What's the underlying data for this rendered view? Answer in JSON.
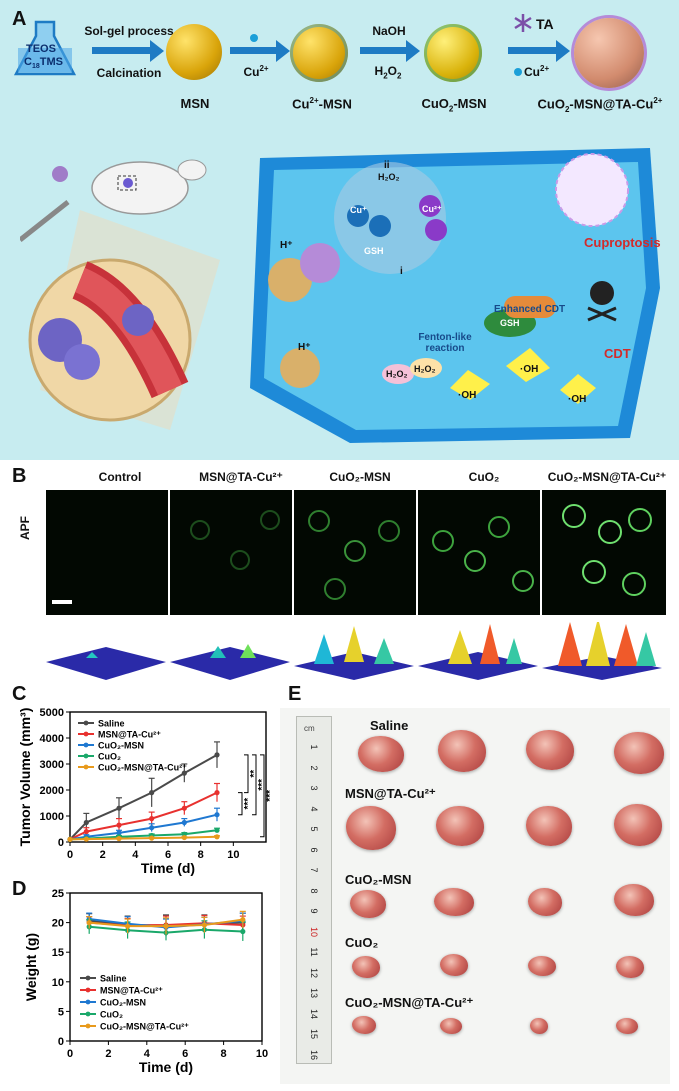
{
  "panel_labels": {
    "a": "A",
    "b": "B",
    "c": "C",
    "d": "D",
    "e": "E"
  },
  "synthesis": {
    "flask_text_line1": "TEOS",
    "flask_text_line2": "C",
    "flask_text_sub": "18",
    "flask_text_suffix": "TMS",
    "step1_top": "Sol-gel process",
    "step1_bottom": "Calcination",
    "step2_label": "Cu",
    "step2_sup": "2+",
    "step3_top": "NaOH",
    "step3_bottom_main": "H",
    "step3_bottom_sub": "2",
    "step3_bottom_tail": "O",
    "step3_bottom_sub2": "2",
    "step4_top": "TA",
    "step4_bottom": "Cu",
    "step4_bottom_sup": "2+",
    "product1": "MSN",
    "product2_main": "Cu",
    "product2_sup": "2+",
    "product2_tail": "-MSN",
    "product3_main": "CuO",
    "product3_sub": "2",
    "product3_tail": "-MSN",
    "product4_main": "CuO",
    "product4_sub": "2",
    "product4_mid": "-MSN@TA-Cu",
    "product4_sup": "2+"
  },
  "mechanism": {
    "h_plus_1": "H⁺",
    "h_plus_2": "H⁺",
    "h2o2_top": "H₂O₂",
    "label_ii": "ii",
    "label_i": "i",
    "gsh_1": "GSH",
    "gsh_2": "GSH",
    "enhanced_cdt": "Enhanced CDT",
    "fenton": "Fenton-like reaction",
    "h2o2_a": "H₂O₂",
    "h2o2_b": "H₂O₂",
    "oh_1": "·OH",
    "oh_2": "·OH",
    "oh_3": "·OH",
    "cdt": "CDT",
    "cuproptosis": "Cuproptosis",
    "cu_ion": "Cu⁺",
    "cu2_ion": "Cu²⁺"
  },
  "panel_b": {
    "row_label": "APF",
    "columns": [
      "Control",
      "MSN@TA-Cu²⁺",
      "CuO₂-MSN",
      "CuO₂",
      "CuO₂-MSN@TA-Cu²⁺"
    ]
  },
  "chart_data": [
    {
      "type": "line",
      "panel": "C",
      "xlabel": "Time (d)",
      "ylabel": "Tumor Volume (mm³)",
      "xlim": [
        0,
        12
      ],
      "ylim": [
        0,
        5000
      ],
      "xticks": [
        0,
        2,
        4,
        6,
        8,
        10
      ],
      "yticks": [
        0,
        1000,
        2000,
        3000,
        4000,
        5000
      ],
      "x": [
        0,
        1,
        3,
        5,
        7,
        9
      ],
      "series": [
        {
          "name": "Saline",
          "color": "#4a4a4a",
          "values": [
            100,
            750,
            1300,
            1900,
            2650,
            3350
          ],
          "err": [
            0,
            350,
            400,
            550,
            350,
            500
          ]
        },
        {
          "name": "MSN@TA-Cu²⁺",
          "color": "#e8312f",
          "values": [
            100,
            400,
            650,
            900,
            1300,
            1900
          ],
          "err": [
            0,
            150,
            250,
            250,
            250,
            350
          ]
        },
        {
          "name": "CuO₂-MSN",
          "color": "#1f78d1",
          "values": [
            100,
            200,
            350,
            550,
            750,
            1050
          ],
          "err": [
            0,
            80,
            100,
            150,
            150,
            250
          ]
        },
        {
          "name": "CuO₂",
          "color": "#1aa86a",
          "values": [
            100,
            130,
            200,
            250,
            300,
            450
          ],
          "err": [
            0,
            40,
            50,
            60,
            60,
            80
          ]
        },
        {
          "name": "CuO₂-MSN@TA-Cu²⁺",
          "color": "#e89a1c",
          "values": [
            100,
            110,
            130,
            150,
            170,
            200
          ],
          "err": [
            0,
            20,
            30,
            30,
            30,
            40
          ]
        }
      ],
      "significance": [
        "**",
        "***",
        "***",
        "***"
      ],
      "legend_position": "top-left"
    },
    {
      "type": "line",
      "panel": "D",
      "xlabel": "Time (d)",
      "ylabel": "Weight (g)",
      "xlim": [
        0,
        10
      ],
      "ylim": [
        0,
        25
      ],
      "xticks": [
        0,
        2,
        4,
        6,
        8,
        10
      ],
      "yticks": [
        0,
        5,
        10,
        15,
        20,
        25
      ],
      "x": [
        1,
        3,
        5,
        7,
        9
      ],
      "series": [
        {
          "name": "Saline",
          "color": "#4a4a4a",
          "values": [
            20.3,
            19.6,
            19.5,
            19.8,
            20.0
          ],
          "err": [
            1.2,
            1.5,
            1.8,
            1.5,
            1.6
          ]
        },
        {
          "name": "MSN@TA-Cu²⁺",
          "color": "#e8312f",
          "values": [
            20.0,
            19.5,
            19.6,
            19.9,
            19.6
          ],
          "err": [
            1.0,
            1.2,
            1.5,
            1.3,
            1.5
          ]
        },
        {
          "name": "CuO₂-MSN",
          "color": "#1f78d1",
          "values": [
            20.6,
            19.8,
            19.2,
            19.7,
            20.3
          ],
          "err": [
            1.0,
            1.2,
            1.4,
            1.2,
            1.3
          ]
        },
        {
          "name": "CuO₂",
          "color": "#1aa86a",
          "values": [
            19.3,
            18.7,
            18.3,
            18.8,
            18.5
          ],
          "err": [
            1.2,
            1.4,
            1.3,
            1.5,
            1.6
          ]
        },
        {
          "name": "CuO₂-MSN@TA-Cu²⁺",
          "color": "#e89a1c",
          "values": [
            20.0,
            19.4,
            19.4,
            19.6,
            20.5
          ],
          "err": [
            1.0,
            1.2,
            1.4,
            1.3,
            1.4
          ]
        }
      ],
      "legend_position": "bottom-left"
    }
  ],
  "panel_e": {
    "groups": [
      "Saline",
      "MSN@TA-Cu²⁺",
      "CuO₂-MSN",
      "CuO₂",
      "CuO₂-MSN@TA-Cu²⁺"
    ],
    "ruler_unit": "cm",
    "ruler_numbers": [
      "1",
      "2",
      "3",
      "4",
      "5",
      "6",
      "7",
      "8",
      "9",
      "10",
      "11",
      "12",
      "13",
      "14",
      "15",
      "16"
    ]
  }
}
